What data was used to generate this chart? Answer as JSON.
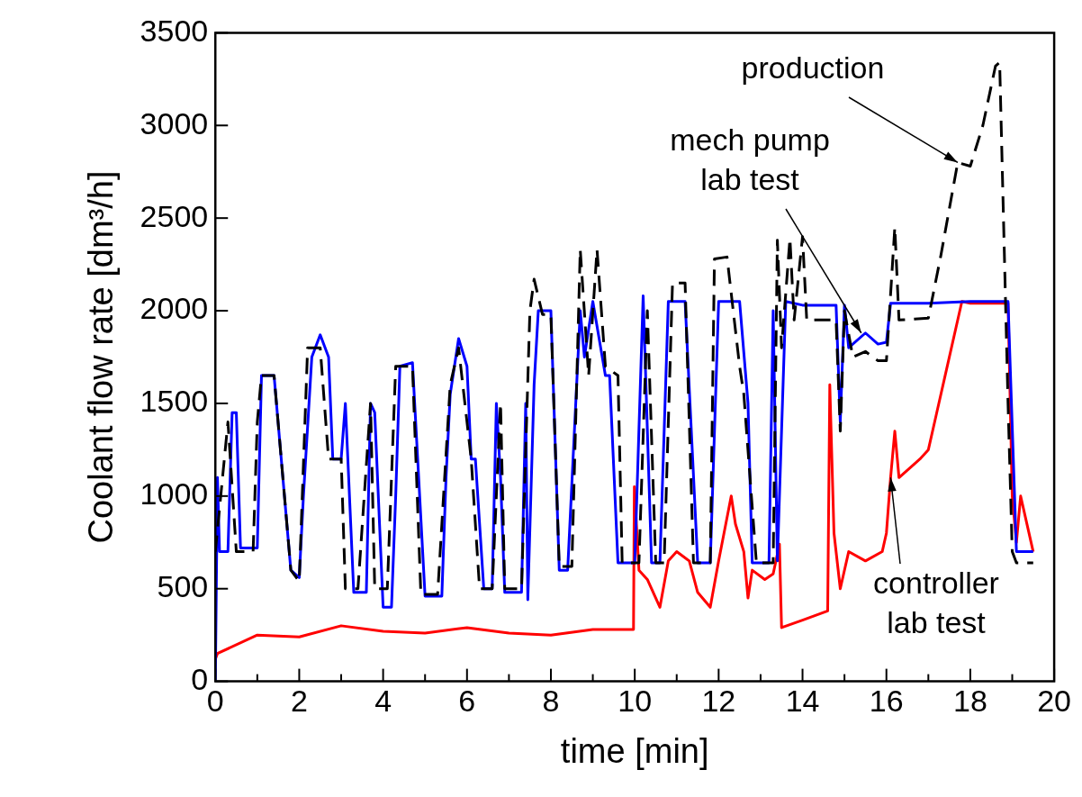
{
  "chart_data": {
    "type": "line",
    "xlabel": "time [min]",
    "ylabel": "Coolant flow rate [dm³/h]",
    "xlim": [
      0,
      20
    ],
    "ylim": [
      0,
      3500
    ],
    "xticks": [
      0,
      {
        "value": 1,
        "label": null
      },
      2,
      {
        "value": 3,
        "label": null
      },
      4,
      {
        "value": 5,
        "label": null
      },
      6,
      {
        "value": 7,
        "label": null
      },
      8,
      {
        "value": 9,
        "label": null
      },
      10,
      {
        "value": 11,
        "label": null
      },
      12,
      {
        "value": 13,
        "label": null
      },
      14,
      {
        "value": 15,
        "label": null
      },
      16,
      {
        "value": 17,
        "label": null
      },
      18,
      {
        "value": 19,
        "label": null
      },
      20
    ],
    "yticks": [
      0,
      500,
      1000,
      1500,
      2000,
      2500,
      3000,
      3500
    ],
    "grid": false,
    "legend": false,
    "marker": "none",
    "annotations": [
      {
        "text": "production",
        "x": 17.7,
        "y": 2800
      },
      {
        "text": "mech pump lab test",
        "x": 15.4,
        "y": 1880
      },
      {
        "text": "controller lab test",
        "x": 16.1,
        "y": 1100
      }
    ],
    "series": [
      {
        "color": "#000000",
        "line_style": "dashed",
        "x": [
          0,
          0.3,
          0.5,
          0.9,
          1.0,
          1.1,
          1.4,
          1.8,
          2.0,
          2.2,
          2.5,
          2.7,
          3.0,
          3.1,
          3.4,
          3.7,
          3.8,
          4.1,
          4.3,
          4.7,
          4.9,
          5.3,
          5.6,
          5.8,
          6.1,
          6.3,
          6.6,
          6.8,
          6.9,
          7.3,
          7.5,
          7.6,
          7.8,
          8.0,
          8.2,
          8.5,
          8.7,
          8.9,
          9.1,
          9.3,
          9.6,
          9.7,
          10.1,
          10.3,
          10.5,
          10.7,
          10.9,
          11.2,
          11.4,
          11.8,
          11.9,
          12.2,
          12.5,
          12.6,
          12.9,
          13.3,
          13.4,
          13.5,
          13.7,
          13.8,
          14.0,
          14.1,
          14.8,
          14.9,
          15.0,
          15.2,
          15.5,
          15.8,
          16.0,
          16.2,
          16.3,
          17.0,
          17.3,
          17.7,
          18.0,
          18.3,
          18.6,
          18.7,
          18.9,
          19.0,
          19.1,
          19.5
        ],
        "values": [
          700,
          1400,
          700,
          700,
          1400,
          1650,
          1650,
          600,
          540,
          1800,
          1800,
          1200,
          1200,
          500,
          500,
          1500,
          500,
          500,
          1700,
          1700,
          470,
          470,
          1600,
          1800,
          1200,
          500,
          500,
          1500,
          500,
          500,
          2000,
          2170,
          1980,
          1980,
          620,
          620,
          2330,
          1650,
          2330,
          1700,
          1650,
          640,
          640,
          2000,
          640,
          640,
          2150,
          2150,
          640,
          640,
          2280,
          2290,
          1700,
          1550,
          640,
          640,
          2380,
          1800,
          2390,
          1950,
          2400,
          1950,
          1950,
          1350,
          2000,
          1750,
          1780,
          1730,
          1730,
          2450,
          1950,
          1960,
          2300,
          2800,
          2780,
          3000,
          3320,
          3340,
          1500,
          700,
          640,
          640
        ]
      },
      {
        "color": "#0000ff",
        "line_style": "solid",
        "x": [
          0,
          0.05,
          0.1,
          0.3,
          0.4,
          0.5,
          0.6,
          1.0,
          1.1,
          1.4,
          1.8,
          2.0,
          2.1,
          2.3,
          2.5,
          2.7,
          2.8,
          3.0,
          3.1,
          3.3,
          3.6,
          3.7,
          3.8,
          4.0,
          4.2,
          4.3,
          4.4,
          4.7,
          5.0,
          5.4,
          5.5,
          5.6,
          5.8,
          6.0,
          6.1,
          6.2,
          6.4,
          6.6,
          6.7,
          6.8,
          6.9,
          7.3,
          7.4,
          7.45,
          7.6,
          7.7,
          8.0,
          8.2,
          8.4,
          8.7,
          8.8,
          9.0,
          9.3,
          9.4,
          9.6,
          10.0,
          10.2,
          10.4,
          10.6,
          10.8,
          11.2,
          11.5,
          11.8,
          12.0,
          12.5,
          12.7,
          12.8,
          13.2,
          13.3,
          13.4,
          13.6,
          14.0,
          14.8,
          14.9,
          15.0,
          15.1,
          15.5,
          15.8,
          16.0,
          16.1,
          17.0,
          18.0,
          18.9,
          19.1,
          19.5
        ],
        "values": [
          0,
          1100,
          700,
          700,
          1450,
          1450,
          720,
          720,
          1650,
          1650,
          600,
          560,
          1000,
          1750,
          1870,
          1750,
          1200,
          1200,
          1500,
          480,
          480,
          1500,
          1450,
          400,
          400,
          1000,
          1700,
          1720,
          460,
          460,
          1100,
          1550,
          1850,
          1700,
          1200,
          1200,
          500,
          500,
          1500,
          1100,
          480,
          480,
          1500,
          440,
          1600,
          2000,
          2000,
          600,
          600,
          2000,
          1750,
          2050,
          1650,
          1650,
          640,
          640,
          2080,
          640,
          640,
          2050,
          2050,
          640,
          640,
          2050,
          2050,
          1500,
          640,
          640,
          2000,
          650,
          2050,
          2030,
          2030,
          1400,
          2030,
          1800,
          1880,
          1820,
          1830,
          2040,
          2040,
          2050,
          2050,
          700,
          700
        ]
      },
      {
        "color": "#ff0000",
        "line_style": "solid",
        "x": [
          0,
          0.05,
          1,
          2,
          3,
          4,
          5,
          6,
          7,
          8,
          9,
          9.97,
          9.99,
          10.1,
          10.3,
          10.6,
          10.8,
          11.0,
          11.3,
          11.5,
          11.8,
          12.0,
          12.3,
          12.4,
          12.6,
          12.7,
          12.8,
          13.1,
          13.3,
          13.45,
          13.5,
          14.0,
          14.6,
          14.65,
          14.75,
          14.9,
          15.1,
          15.5,
          15.9,
          16.0,
          16.1,
          16.2,
          16.3,
          16.8,
          17.0,
          17.2,
          17.4,
          17.8,
          18.0,
          18.9,
          19.0,
          19.1,
          19.2,
          19.5
        ],
        "values": [
          120,
          150,
          250,
          240,
          300,
          270,
          260,
          290,
          260,
          250,
          280,
          280,
          1050,
          600,
          550,
          400,
          650,
          700,
          650,
          480,
          400,
          650,
          1000,
          850,
          700,
          450,
          600,
          550,
          580,
          740,
          290,
          330,
          380,
          1600,
          800,
          500,
          700,
          650,
          700,
          800,
          1100,
          1350,
          1100,
          1200,
          1250,
          1450,
          1650,
          2050,
          2040,
          2040,
          1000,
          750,
          1000,
          700
        ]
      }
    ]
  }
}
